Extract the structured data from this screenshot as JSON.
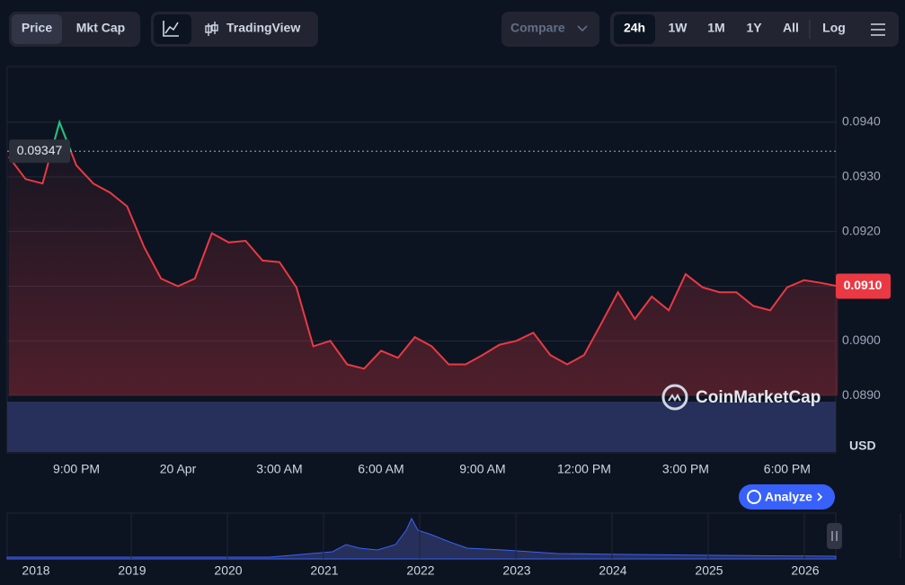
{
  "toolbar": {
    "view": [
      "Price",
      "Mkt Cap"
    ],
    "tools": [
      "TradingView"
    ],
    "compare": "Compare",
    "ranges": [
      "24h",
      "1W",
      "1M",
      "1Y",
      "All"
    ],
    "log": "Log"
  },
  "chart_data": {
    "type": "line",
    "categories": [
      null,
      null,
      null,
      null,
      "9:00 PM",
      null,
      null,
      null,
      null,
      null,
      "20 Apr",
      null,
      null,
      null,
      null,
      null,
      "3:00 AM",
      null,
      null,
      null,
      null,
      null,
      "6:00 AM",
      null,
      null,
      null,
      null,
      null,
      "9:00 AM",
      null,
      null,
      null,
      null,
      null,
      "12:00 PM",
      null,
      null,
      null,
      null,
      null,
      "3:00 PM",
      null,
      null,
      null,
      null,
      null,
      "6:00 PM",
      null,
      null,
      null
    ],
    "series": [
      {
        "name": "Price",
        "color": "#ea3943",
        "up_color": "#16c784",
        "values": [
          0.09337,
          0.09296,
          0.09288,
          0.094,
          0.09321,
          0.09288,
          0.09271,
          0.09246,
          0.09172,
          0.09114,
          0.091,
          0.09114,
          0.09197,
          0.0918,
          0.09183,
          0.09147,
          0.09144,
          0.09098,
          0.0899,
          0.09,
          0.08957,
          0.08949,
          0.08982,
          0.08969,
          0.09007,
          0.0899,
          0.08957,
          0.08957,
          0.08974,
          0.08993,
          0.09,
          0.09015,
          0.08974,
          0.08957,
          0.08974,
          0.09031,
          0.09089,
          0.0904,
          0.09081,
          0.09056,
          0.09122,
          0.09098,
          0.09089,
          0.09089,
          0.09064,
          0.09056,
          0.09098,
          0.09111,
          0.09106,
          0.091
        ]
      }
    ],
    "open_price": 0.09347,
    "last_price": {
      "value": 0.091,
      "label": "0.0910"
    },
    "ylim": [
      0.08795,
      0.09502
    ],
    "yticks": [
      {
        "value": 0.089,
        "label": "0.0890"
      },
      {
        "value": 0.09,
        "label": "0.0900"
      },
      {
        "value": 0.091,
        "label": "0.0910"
      },
      {
        "value": 0.092,
        "label": "0.0920"
      },
      {
        "value": 0.093,
        "label": "0.0930"
      },
      {
        "value": 0.094,
        "label": "0.0940"
      }
    ],
    "grid": true,
    "currency": "USD"
  },
  "watermark": "CoinMarketCap",
  "analyze": "Analyze",
  "navigator": {
    "years": [
      "2018",
      "2019",
      "2020",
      "2021",
      "2022",
      "2023",
      "2024",
      "2025",
      "2026"
    ]
  }
}
